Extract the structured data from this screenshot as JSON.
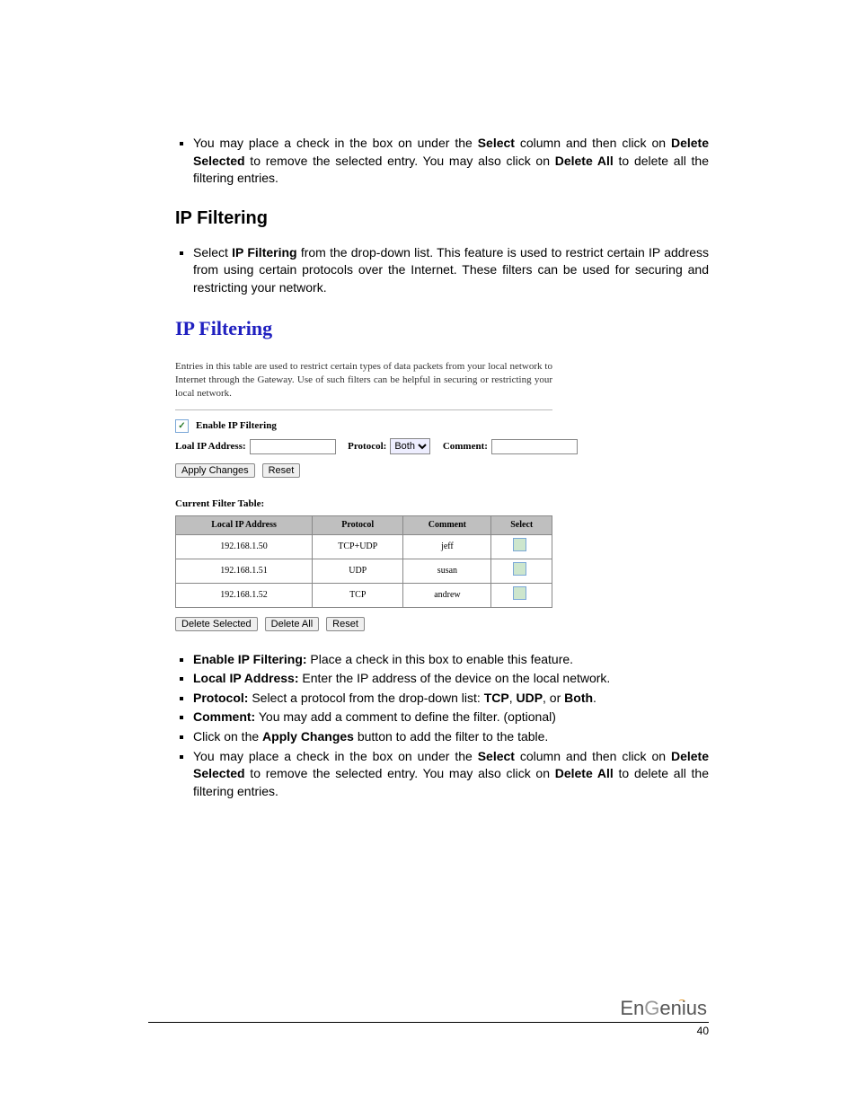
{
  "intro_bullets": [
    {
      "pre": "You may place a check in the box on under the ",
      "b1": "Select",
      "mid": " column and then click on ",
      "b2": "Delete Selected",
      "mid2": " to remove the selected entry. You may also click on ",
      "b3": "Delete All",
      "post": " to delete all the filtering entries."
    }
  ],
  "section_heading": "IP Filtering",
  "section_bullets": [
    {
      "pre": "Select ",
      "b1": "IP Filtering",
      "post": " from the drop-down list. This feature is used to restrict certain IP address from using certain protocols over the Internet. These filters can be used for securing and restricting your network."
    }
  ],
  "panel": {
    "title": "IP Filtering",
    "desc": "Entries in this table are used to restrict certain types of data packets from your local network to Internet through the Gateway. Use of such filters can be helpful in securing or restricting your local network.",
    "enable_label": "Enable IP Filtering",
    "enable_checked": true,
    "local_ip_label": "Loal IP Address:",
    "protocol_label": "Protocol:",
    "protocol_value": "Both",
    "comment_label": "Comment:",
    "apply_btn": "Apply Changes",
    "reset_btn": "Reset",
    "table_title": "Current Filter Table:",
    "columns": [
      "Local IP Address",
      "Protocol",
      "Comment",
      "Select"
    ],
    "rows": [
      {
        "ip": "192.168.1.50",
        "proto": "TCP+UDP",
        "comment": "jeff"
      },
      {
        "ip": "192.168.1.51",
        "proto": "UDP",
        "comment": "susan"
      },
      {
        "ip": "192.168.1.52",
        "proto": "TCP",
        "comment": "andrew"
      }
    ],
    "delete_selected_btn": "Delete Selected",
    "delete_all_btn": "Delete All",
    "reset2_btn": "Reset"
  },
  "feature_bullets": [
    {
      "b": "Enable IP Filtering:",
      "t": " Place a check in this box to enable this feature."
    },
    {
      "b": "Local IP Address:",
      "t": " Enter the IP address of the device on the local network."
    },
    {
      "b": "Protocol:",
      "t_pre": " Select a protocol from the drop-down list: ",
      "b1": "TCP",
      "s1": ", ",
      "b2": "UDP",
      "s2": ", or ",
      "b3": "Both",
      "s3": "."
    },
    {
      "b": "Comment:",
      "t": " You may add a comment to define the filter. (optional)"
    },
    {
      "t_pre": "Click on the ",
      "b1": "Apply Changes",
      "t_post": " button to add the filter to the table."
    },
    {
      "t_pre": "You may place a check in the box on under the ",
      "b1": "Select",
      "s1": " column and then click on ",
      "b2": "Delete Selected",
      "s2": " to remove the selected entry. You may also click on ",
      "b3": "Delete All",
      "s3": " to delete all the filtering entries."
    }
  ],
  "footer": {
    "logo": "EnGenius",
    "page": "40"
  }
}
